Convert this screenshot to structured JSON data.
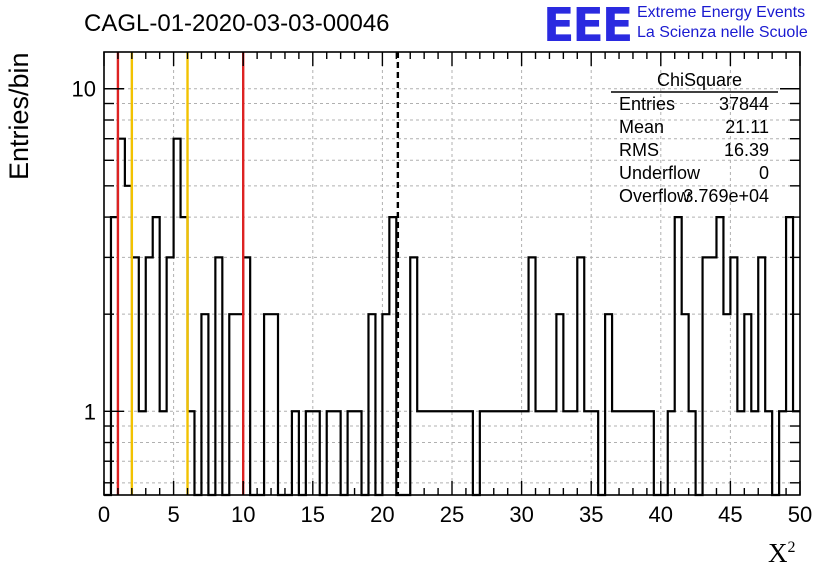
{
  "chart_data": {
    "type": "bar",
    "histogram_name": "CAGL-01-2020-03-03-00046",
    "title": "CAGL-01-2020-03-03-00046",
    "xlabel": "X",
    "xlabel_superscript": "2",
    "ylabel": "Entries/bin",
    "xlim": [
      0,
      50
    ],
    "ylim": [
      0.55,
      13
    ],
    "y_scale": "log",
    "grid": true,
    "bin_width": 0.5,
    "x_ticks": [
      "0",
      "5",
      "10",
      "15",
      "20",
      "25",
      "30",
      "35",
      "40",
      "45",
      "50"
    ],
    "y_ticks": [
      {
        "value": 1,
        "label": "1"
      },
      {
        "value": 10,
        "label": "10"
      }
    ],
    "counts": [
      0,
      4,
      7,
      5,
      3,
      1,
      3,
      4,
      1,
      3,
      7,
      4,
      1,
      0,
      2,
      0,
      3,
      0,
      2,
      2,
      3,
      0,
      0,
      2,
      2,
      0,
      0,
      1,
      0,
      1,
      1,
      0,
      1,
      1,
      0,
      1,
      1,
      0,
      2,
      0,
      2,
      4,
      0,
      0,
      3,
      1,
      1,
      1,
      1,
      1,
      1,
      1,
      1,
      0,
      1,
      1,
      1,
      1,
      1,
      1,
      1,
      3,
      1,
      1,
      1,
      2,
      1,
      1,
      3,
      1,
      1,
      0,
      2,
      1,
      1,
      1,
      1,
      1,
      1,
      0,
      0,
      1,
      4,
      2,
      1,
      0,
      3,
      3,
      4,
      2,
      3,
      1,
      2,
      1,
      3,
      1,
      0,
      1,
      4,
      1
    ],
    "vertical_lines": [
      {
        "x": 1,
        "color": "#dd2222",
        "style": "solid"
      },
      {
        "x": 2,
        "color": "#f2c200",
        "style": "solid"
      },
      {
        "x": 6,
        "color": "#f2c200",
        "style": "solid"
      },
      {
        "x": 10,
        "color": "#dd2222",
        "style": "solid"
      },
      {
        "x": 21.11,
        "color": "#000000",
        "style": "dashed"
      }
    ],
    "stats_box": {
      "title": "ChiSquare",
      "rows": [
        {
          "label": "Entries",
          "value": "37844"
        },
        {
          "label": "Mean",
          "value": "21.11"
        },
        {
          "label": "RMS",
          "value": "16.39"
        },
        {
          "label": "Underflow",
          "value": "0"
        },
        {
          "label": "Overflow",
          "value": "3.769e+04"
        }
      ]
    }
  },
  "logo": {
    "text": "EEE",
    "line1": "Extreme Energy Events",
    "line2": "La Scienza nelle Scuole"
  }
}
